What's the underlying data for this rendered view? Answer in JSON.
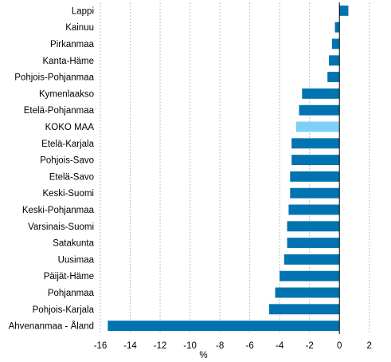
{
  "chart_data": {
    "type": "bar",
    "orientation": "horizontal",
    "categories": [
      "Lappi",
      "Kainuu",
      "Pirkanmaa",
      "Kanta-Häme",
      "Pohjois-Pohjanmaa",
      "Kymenlaakso",
      "Etelä-Pohjanmaa",
      "KOKO MAA",
      "Etelä-Karjala",
      "Pohjois-Savo",
      "Etelä-Savo",
      "Keski-Suomi",
      "Keski-Pohjanmaa",
      "Varsinais-Suomi",
      "Satakunta",
      "Uusimaa",
      "Päijät-Häme",
      "Pohjanmaa",
      "Pohjois-Karjala",
      "Ahvenanmaa - Åland"
    ],
    "values": [
      0.6,
      -0.3,
      -0.5,
      -0.7,
      -0.8,
      -2.5,
      -2.7,
      -2.9,
      -3.2,
      -3.2,
      -3.3,
      -3.3,
      -3.4,
      -3.5,
      -3.5,
      -3.7,
      -4.0,
      -4.3,
      -4.7,
      -15.5
    ],
    "highlight_category": "KOKO MAA",
    "colors": {
      "default": "#0073b0",
      "highlight": "#7fd0f5"
    },
    "x_ticks": [
      "-16",
      "-14",
      "-12",
      "-10",
      "-8",
      "-6",
      "-4",
      "-2",
      "0",
      "2"
    ],
    "xlim": [
      -16,
      2.6
    ],
    "xlabel": "%",
    "title": "",
    "grid": true
  }
}
